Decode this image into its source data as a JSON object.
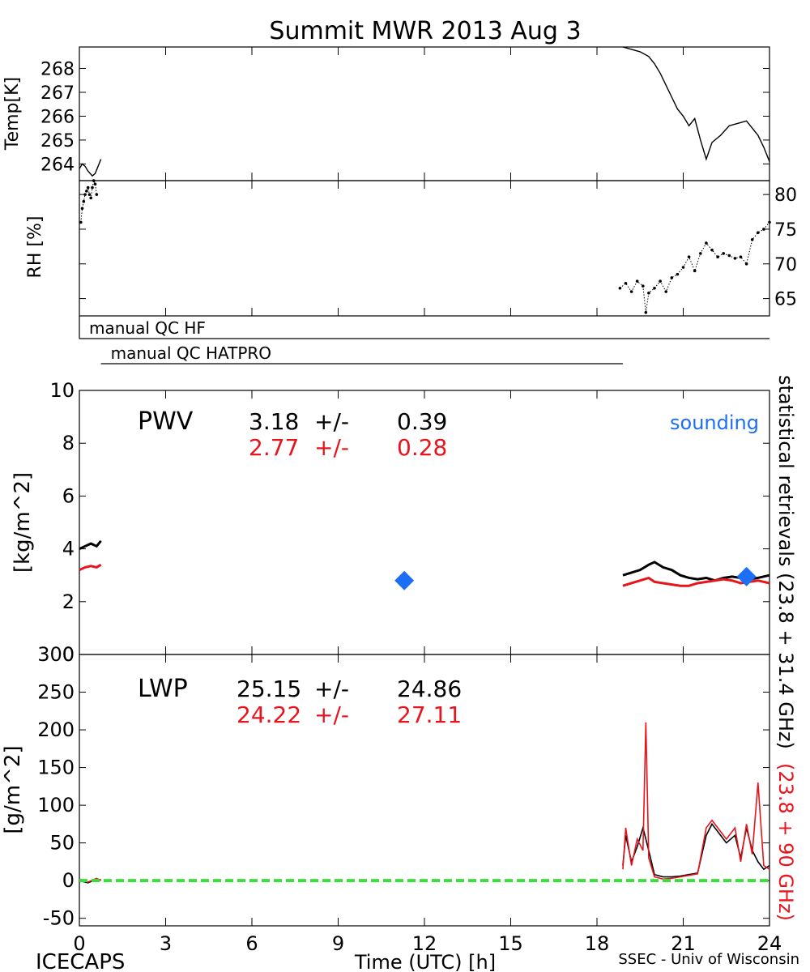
{
  "title": "Summit MWR 2013 Aug  3",
  "footer": {
    "left": "ICECAPS",
    "center": "Time (UTC) [h]",
    "right": "SSEC - Univ of Wisconsin"
  },
  "side_labels": {
    "black": "statistical retrievals (23.8 + 31.4 GHz)",
    "red": "(23.8 + 90 GHz)"
  },
  "colors": {
    "black_series": "#000000",
    "red_series": "#e8141c",
    "sounding": "#1c6ef5",
    "zero_line": "#3ae03a"
  },
  "chart_data": [
    {
      "type": "line",
      "ylabel": "Temp[K]",
      "xlim": [
        0,
        24
      ],
      "ylim": [
        263.3,
        268.9
      ],
      "yticks": [
        264,
        265,
        266,
        267,
        268
      ],
      "series": [
        {
          "x": [
            0.0,
            0.1,
            0.2,
            0.3,
            0.45,
            0.55,
            0.65,
            0.75
          ],
          "y": [
            263.8,
            264.0,
            263.9,
            263.7,
            263.5,
            263.6,
            263.9,
            264.2
          ]
        },
        {
          "x": [
            18.9,
            19.2,
            19.5,
            19.8,
            20.0,
            20.2,
            20.4,
            20.6,
            20.8,
            21.0,
            21.2,
            21.4,
            21.6,
            21.8,
            22.0,
            22.3,
            22.6,
            22.9,
            23.2,
            23.4,
            23.6,
            23.8,
            24.0
          ],
          "y": [
            268.9,
            268.8,
            268.7,
            268.5,
            268.2,
            267.8,
            267.3,
            266.8,
            266.3,
            266.0,
            265.6,
            265.9,
            265.0,
            264.2,
            264.9,
            265.2,
            265.6,
            265.7,
            265.8,
            265.5,
            265.2,
            264.7,
            264.1
          ]
        }
      ]
    },
    {
      "type": "scatter",
      "ylabel": "RH [%]",
      "xlim": [
        0,
        24
      ],
      "ylim": [
        62.5,
        82
      ],
      "yticks": [
        65,
        70,
        75,
        80
      ],
      "series": [
        {
          "x": [
            0.05,
            0.1,
            0.15,
            0.2,
            0.25,
            0.3,
            0.35,
            0.4,
            0.45,
            0.5,
            0.55,
            0.6
          ],
          "y": [
            76,
            78,
            79,
            80,
            80.5,
            81,
            80,
            79.5,
            81,
            82,
            81.5,
            80
          ]
        },
        {
          "x": [
            18.8,
            19.0,
            19.2,
            19.4,
            19.6,
            19.7,
            19.8,
            20.0,
            20.2,
            20.4,
            20.6,
            20.8,
            21.0,
            21.2,
            21.4,
            21.6,
            21.8,
            22.0,
            22.2,
            22.4,
            22.6,
            22.8,
            23.0,
            23.2,
            23.4,
            23.6,
            23.8,
            24.0
          ],
          "y": [
            66.5,
            67.2,
            66.0,
            67.5,
            66.8,
            63.0,
            65.8,
            66.5,
            67.5,
            66.0,
            68.0,
            68.5,
            69.5,
            71.0,
            69.0,
            71.5,
            73.0,
            72.0,
            71.0,
            71.5,
            71.2,
            70.8,
            71.0,
            70.0,
            73.5,
            74.5,
            75.0,
            76.0
          ]
        }
      ]
    },
    {
      "type": "line",
      "ylabel": "[kg/m^2]",
      "label": "PWV",
      "stats": [
        {
          "value": "3.18",
          "pm": "+/-",
          "err": "0.39",
          "color": "#000000"
        },
        {
          "value": "2.77",
          "pm": "+/-",
          "err": "0.28",
          "color": "#e8141c"
        }
      ],
      "legend": [
        {
          "text": "sounding",
          "color": "#1c6ef5"
        }
      ],
      "xlim": [
        0,
        24
      ],
      "ylim": [
        0,
        10
      ],
      "yticks": [
        0,
        2,
        4,
        6,
        8,
        10
      ],
      "series": [
        {
          "color": "black",
          "x": [
            0.0,
            0.2,
            0.4,
            0.6,
            0.75
          ],
          "y": [
            4.0,
            4.1,
            4.2,
            4.1,
            4.3
          ]
        },
        {
          "color": "black",
          "x": [
            18.9,
            19.2,
            19.5,
            19.8,
            20.0,
            20.3,
            20.6,
            20.9,
            21.2,
            21.5,
            21.8,
            22.1,
            22.4,
            22.7,
            23.0,
            23.3,
            23.6,
            24.0
          ],
          "y": [
            3.0,
            3.1,
            3.2,
            3.4,
            3.5,
            3.3,
            3.2,
            3.0,
            2.9,
            2.85,
            2.9,
            2.8,
            2.9,
            2.95,
            2.9,
            2.85,
            2.9,
            3.0
          ]
        },
        {
          "color": "red",
          "x": [
            0.0,
            0.2,
            0.4,
            0.6,
            0.75
          ],
          "y": [
            3.2,
            3.3,
            3.35,
            3.3,
            3.4
          ]
        },
        {
          "color": "red",
          "x": [
            18.9,
            19.2,
            19.5,
            19.8,
            20.0,
            20.3,
            20.6,
            20.9,
            21.2,
            21.5,
            21.8,
            22.1,
            22.4,
            22.7,
            23.0,
            23.3,
            23.6,
            24.0
          ],
          "y": [
            2.6,
            2.7,
            2.8,
            2.9,
            2.75,
            2.7,
            2.65,
            2.6,
            2.6,
            2.7,
            2.75,
            2.8,
            2.85,
            2.8,
            2.7,
            2.75,
            2.8,
            2.7
          ]
        },
        {
          "color": "sounding",
          "marker": "diamond",
          "x": [
            11.3,
            23.2
          ],
          "y": [
            2.8,
            2.95
          ]
        }
      ]
    },
    {
      "type": "line",
      "ylabel": "[g/m^2]",
      "label": "LWP",
      "stats": [
        {
          "value": "25.15",
          "pm": "+/-",
          "err": "24.86",
          "color": "#000000"
        },
        {
          "value": "24.22",
          "pm": "+/-",
          "err": "27.11",
          "color": "#e8141c"
        }
      ],
      "xlabel": "Time (UTC) [h]",
      "xlim": [
        0,
        24
      ],
      "ylim": [
        -60,
        300
      ],
      "xticks": [
        0,
        3,
        6,
        9,
        12,
        15,
        18,
        21,
        24
      ],
      "yticks": [
        -50,
        0,
        50,
        100,
        150,
        200,
        250,
        300
      ],
      "series": [
        {
          "color": "black",
          "x": [
            0.0,
            0.3,
            0.6,
            0.75
          ],
          "y": [
            0,
            -3,
            2,
            1
          ]
        },
        {
          "color": "black",
          "x": [
            18.9,
            19.0,
            19.2,
            19.4,
            19.6,
            19.8,
            20.0,
            20.3,
            20.6,
            20.9,
            21.2,
            21.5,
            21.8,
            22.0,
            22.2,
            22.5,
            22.8,
            23.0,
            23.2,
            23.4,
            23.6,
            23.8,
            24.0
          ],
          "y": [
            20,
            60,
            25,
            45,
            70,
            40,
            8,
            5,
            5,
            6,
            8,
            10,
            60,
            75,
            65,
            50,
            60,
            30,
            70,
            40,
            25,
            15,
            20
          ]
        },
        {
          "color": "red",
          "x": [
            0.0,
            0.3,
            0.6,
            0.75
          ],
          "y": [
            2,
            -2,
            3,
            0
          ]
        },
        {
          "color": "red",
          "x": [
            18.9,
            19.0,
            19.2,
            19.4,
            19.6,
            19.7,
            19.8,
            20.0,
            20.3,
            20.6,
            20.9,
            21.2,
            21.5,
            21.8,
            22.0,
            22.2,
            22.5,
            22.8,
            23.0,
            23.2,
            23.4,
            23.6,
            23.8,
            24.0
          ],
          "y": [
            15,
            70,
            20,
            55,
            40,
            210,
            30,
            5,
            2,
            3,
            5,
            7,
            9,
            70,
            80,
            70,
            55,
            70,
            25,
            75,
            35,
            130,
            20,
            15
          ]
        },
        {
          "color": "zero_line",
          "style": "dashed",
          "x": [
            0,
            24
          ],
          "y": [
            0,
            0
          ]
        }
      ]
    }
  ],
  "qc_bars": [
    {
      "label": "manual QC HF",
      "x": [
        0.0,
        24.0
      ]
    },
    {
      "label": "manual QC HATPRO",
      "x": [
        0.75,
        18.9
      ]
    }
  ]
}
